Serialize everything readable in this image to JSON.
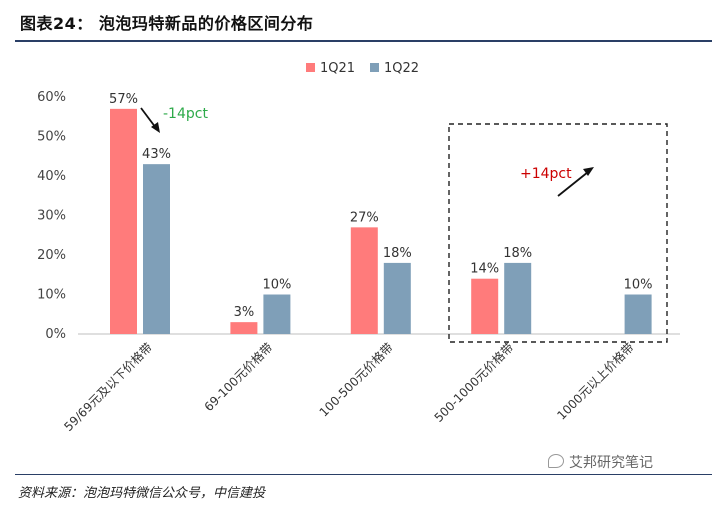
{
  "header": {
    "title": "图表24：  泡泡玛特新品的价格区间分布"
  },
  "footer": {
    "source": "资料来源：泡泡玛特微信公众号，中信建投",
    "watermark": "艾邦研究笔记"
  },
  "colors": {
    "q21": "#FF7B7B",
    "q22": "#7F9FB8",
    "rule": "#2a3f66",
    "up": "#cc0000",
    "down": "#2eaa4a"
  },
  "chart_data": {
    "type": "bar",
    "categories": [
      "59/69元及以下价格带",
      "69-100元价格带",
      "100-500元价格带",
      "500-1000元价格带",
      "1000元以上价格带"
    ],
    "series": [
      {
        "name": "1Q21",
        "values": [
          57,
          3,
          27,
          14,
          0
        ],
        "labels": [
          "57%",
          "3%",
          "27%",
          "14%",
          ""
        ]
      },
      {
        "name": "1Q22",
        "values": [
          43,
          10,
          18,
          18,
          10
        ],
        "labels": [
          "43%",
          "10%",
          "18%",
          "18%",
          "10%"
        ]
      }
    ],
    "y_ticks": [
      "0%",
      "10%",
      "20%",
      "30%",
      "40%",
      "50%",
      "60%"
    ],
    "ylim": [
      0,
      60
    ],
    "annotations": {
      "down": "-14pct",
      "up": "+14pct"
    },
    "legend_position": "top-right",
    "grid": false
  }
}
